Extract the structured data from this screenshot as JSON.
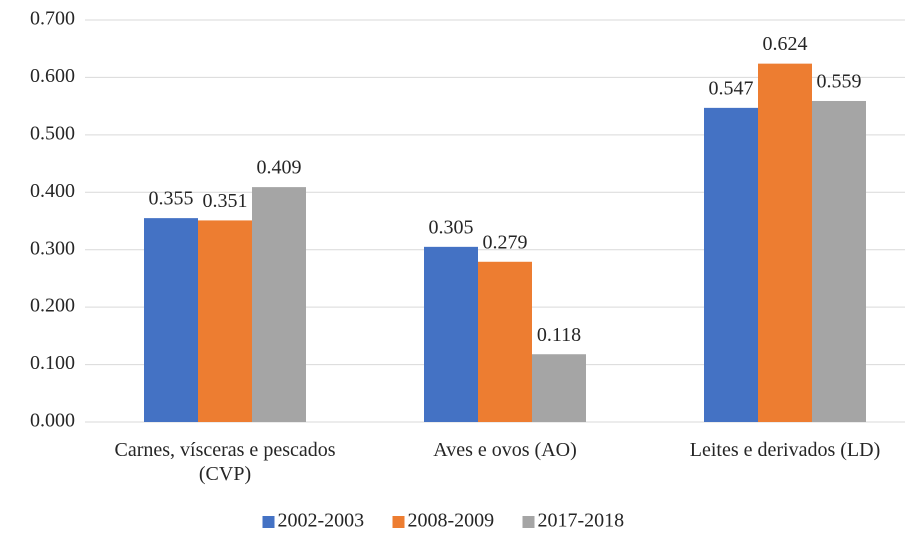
{
  "chart_data": {
    "type": "bar",
    "categories": [
      "Carnes, vísceras e pescados (CVP)",
      "Aves e ovos (AO)",
      "Leites e derivados (LD)"
    ],
    "series": [
      {
        "name": "2002-2003",
        "color": "#4472c4",
        "values": [
          0.355,
          0.305,
          0.547
        ]
      },
      {
        "name": "2008-2009",
        "color": "#ed7d31",
        "values": [
          0.351,
          0.279,
          0.624
        ]
      },
      {
        "name": "2017-2018",
        "color": "#a5a5a5",
        "values": [
          0.409,
          0.118,
          0.559
        ]
      }
    ],
    "ylim": [
      0,
      0.7
    ],
    "yticks": [
      {
        "value": 0,
        "label": "0.000"
      },
      {
        "value": 0.1,
        "label": "0.100"
      },
      {
        "value": 0.2,
        "label": "0.200"
      },
      {
        "value": 0.3,
        "label": "0.300"
      },
      {
        "value": 0.4,
        "label": "0.400"
      },
      {
        "value": 0.5,
        "label": "0.500"
      },
      {
        "value": 0.6,
        "label": "0.600"
      },
      {
        "value": 0.7,
        "label": "0.700"
      }
    ],
    "grid": true,
    "legend": "bottom"
  }
}
